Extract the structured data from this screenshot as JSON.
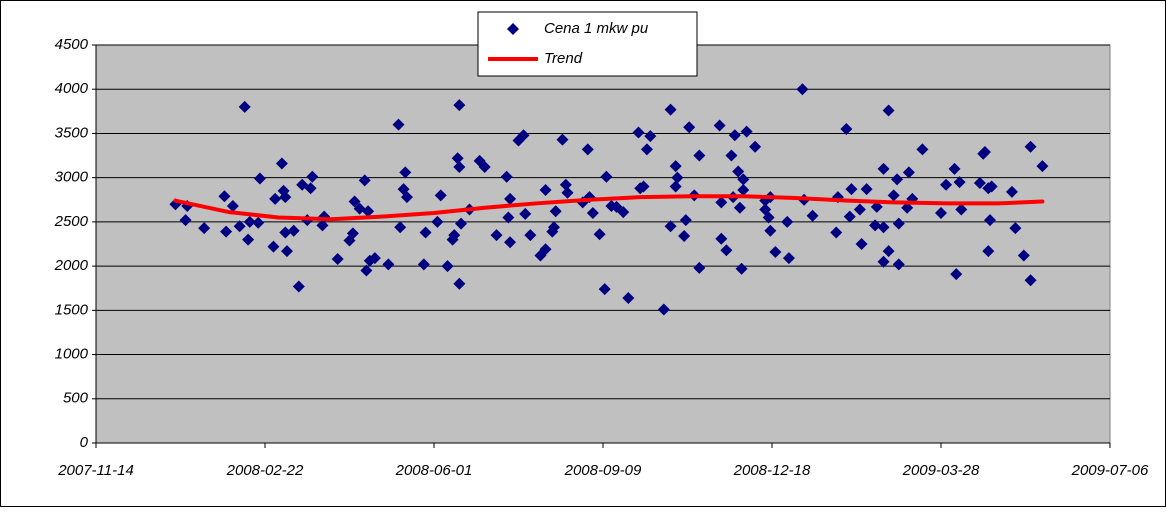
{
  "chart_data": {
    "type": "scatter",
    "xlim": [
      "2007-11-14",
      "2009-07-06"
    ],
    "xticks": [
      "2007-11-14",
      "2008-02-22",
      "2008-06-01",
      "2008-09-09",
      "2008-12-18",
      "2009-03-28",
      "2009-07-06"
    ],
    "ylim": [
      0,
      4500
    ],
    "yticks": [
      0,
      500,
      1000,
      1500,
      2000,
      2500,
      3000,
      3500,
      4000,
      4500
    ],
    "grid": true,
    "legend": "top",
    "series": [
      {
        "name": "Cena 1 mkw pu",
        "color": "#000080",
        "mark": "diamond",
        "x": [
          "2007-12-31",
          "2008-01-06",
          "2008-01-07",
          "2008-01-17",
          "2008-01-29",
          "2008-01-30",
          "2008-02-03",
          "2008-02-07",
          "2008-02-10",
          "2008-02-12",
          "2008-02-13",
          "2008-02-18",
          "2008-02-19",
          "2008-02-27",
          "2008-02-28",
          "2008-03-03",
          "2008-03-04",
          "2008-03-05",
          "2008-03-05",
          "2008-03-06",
          "2008-03-10",
          "2008-03-13",
          "2008-03-15",
          "2008-03-18",
          "2008-03-20",
          "2008-03-21",
          "2008-03-27",
          "2008-03-28",
          "2008-04-05",
          "2008-04-12",
          "2008-04-14",
          "2008-04-15",
          "2008-04-18",
          "2008-04-21",
          "2008-04-23",
          "2008-04-22",
          "2008-04-24",
          "2008-04-27",
          "2008-05-05",
          "2008-05-11",
          "2008-05-12",
          "2008-05-14",
          "2008-05-15",
          "2008-05-16",
          "2008-05-26",
          "2008-05-27",
          "2008-06-03",
          "2008-06-05",
          "2008-06-09",
          "2008-06-12",
          "2008-06-13",
          "2008-06-15",
          "2008-06-16",
          "2008-06-16",
          "2008-06-16",
          "2008-06-17",
          "2008-06-22",
          "2008-06-28",
          "2008-07-01",
          "2008-07-08",
          "2008-07-14",
          "2008-07-16",
          "2008-07-15",
          "2008-07-16",
          "2008-07-21",
          "2008-07-24",
          "2008-07-25",
          "2008-07-28",
          "2008-08-03",
          "2008-08-06",
          "2008-08-06",
          "2008-08-10",
          "2008-08-11",
          "2008-08-12",
          "2008-08-16",
          "2008-08-18",
          "2008-08-19",
          "2008-08-28",
          "2008-08-31",
          "2008-09-01",
          "2008-09-03",
          "2008-09-07",
          "2008-09-10",
          "2008-09-11",
          "2008-09-14",
          "2008-09-17",
          "2008-09-21",
          "2008-09-24",
          "2008-09-30",
          "2008-10-01",
          "2008-10-03",
          "2008-10-05",
          "2008-10-07",
          "2008-10-15",
          "2008-10-19",
          "2008-10-19",
          "2008-10-22",
          "2008-10-22",
          "2008-10-23",
          "2008-10-28",
          "2008-10-27",
          "2008-10-30",
          "2008-11-02",
          "2008-11-05",
          "2008-11-05",
          "2008-11-17",
          "2008-11-18",
          "2008-11-18",
          "2008-11-21",
          "2008-11-24",
          "2008-11-25",
          "2008-11-26",
          "2008-11-28",
          "2008-11-29",
          "2008-11-30",
          "2008-12-01",
          "2008-12-03",
          "2008-12-01",
          "2008-12-08",
          "2008-12-14",
          "2008-12-14",
          "2008-12-16",
          "2008-12-17",
          "2008-12-17",
          "2008-12-20",
          "2008-12-28",
          "2008-12-27",
          "2009-01-05",
          "2009-01-06",
          "2009-01-11",
          "2009-01-25",
          "2009-01-26",
          "2009-01-31",
          "2009-02-02",
          "2009-02-03",
          "2009-02-08",
          "2009-02-09",
          "2009-02-12",
          "2009-02-17",
          "2009-02-18",
          "2009-02-22",
          "2009-02-22",
          "2009-02-22",
          "2009-02-25",
          "2009-02-25",
          "2009-02-28",
          "2009-03-02",
          "2009-03-03",
          "2009-03-03",
          "2009-03-08",
          "2009-03-09",
          "2009-03-11",
          "2009-03-17",
          "2009-03-28",
          "2009-03-31",
          "2009-04-05",
          "2009-04-06",
          "2009-04-08",
          "2009-04-09",
          "2009-04-20",
          "2009-04-22",
          "2009-04-23",
          "2009-04-25",
          "2009-04-26",
          "2009-04-25",
          "2009-04-27",
          "2009-05-09",
          "2009-05-11",
          "2009-05-16",
          "2009-05-20",
          "2009-05-20",
          "2009-05-27"
        ],
        "values": [
          2700,
          2520,
          2680,
          2430,
          2790,
          2390,
          2680,
          2450,
          3800,
          2300,
          2500,
          2490,
          2990,
          2220,
          2760,
          3160,
          2850,
          2780,
          2380,
          2170,
          2400,
          1770,
          2920,
          2520,
          2880,
          3010,
          2460,
          2560,
          2080,
          2290,
          2370,
          2730,
          2650,
          2970,
          2620,
          1950,
          2060,
          2090,
          2020,
          3600,
          2440,
          2870,
          3060,
          2780,
          2020,
          2380,
          2500,
          2800,
          2000,
          2300,
          2350,
          3220,
          3820,
          3120,
          1800,
          2480,
          2640,
          3190,
          3120,
          2350,
          3010,
          2270,
          2550,
          2760,
          3420,
          3480,
          2590,
          2350,
          2120,
          2190,
          2860,
          2390,
          2440,
          2620,
          3430,
          2920,
          2830,
          2720,
          3320,
          2780,
          2600,
          2360,
          1740,
          3010,
          2680,
          2670,
          2610,
          1640,
          3510,
          2880,
          2900,
          3320,
          3470,
          1510,
          3770,
          2450,
          2900,
          3130,
          3000,
          2520,
          2340,
          3570,
          2800,
          3250,
          1980,
          3590,
          2310,
          2720,
          2180,
          3250,
          2780,
          3480,
          3070,
          2660,
          1970,
          2980,
          3520,
          2860,
          3350,
          2640,
          2740,
          2550,
          2780,
          2400,
          2160,
          2090,
          2500,
          4000,
          2750,
          2570,
          2380,
          2780,
          3550,
          2560,
          2870,
          2640,
          2250,
          2870,
          2460,
          2670,
          3100,
          2050,
          2440,
          3760,
          2170,
          2800,
          2980,
          2480,
          2020,
          2660,
          3060,
          2760,
          3320,
          2600,
          2920,
          3100,
          1910,
          2950,
          2640,
          2940,
          3270,
          3290,
          2880,
          2520,
          2170,
          2900,
          2840,
          2430,
          2120,
          3350,
          1840,
          3130
        ]
      },
      {
        "name": "Trend",
        "color": "#ff0000",
        "mark": "line",
        "x": [
          "2007-12-31",
          "2008-02-01",
          "2008-03-01",
          "2008-04-01",
          "2008-05-01",
          "2008-06-01",
          "2008-07-01",
          "2008-08-01",
          "2008-09-01",
          "2008-10-01",
          "2008-11-01",
          "2008-12-01",
          "2009-01-01",
          "2009-02-01",
          "2009-03-01",
          "2009-04-01",
          "2009-05-01",
          "2009-05-27"
        ],
        "values": [
          2740,
          2610,
          2550,
          2530,
          2560,
          2600,
          2660,
          2710,
          2750,
          2780,
          2790,
          2790,
          2770,
          2740,
          2720,
          2710,
          2710,
          2730
        ]
      }
    ]
  }
}
